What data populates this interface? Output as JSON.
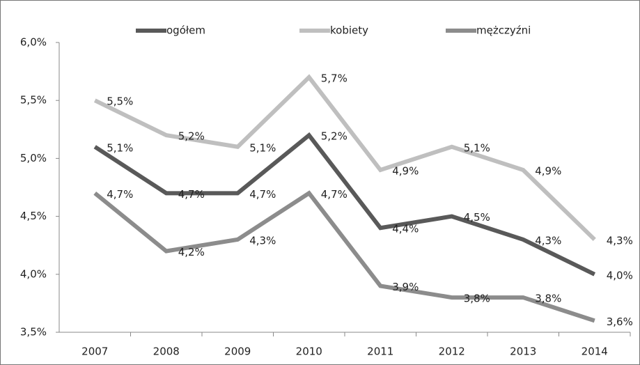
{
  "chart_data": {
    "type": "line",
    "categories": [
      "2007",
      "2008",
      "2009",
      "2010",
      "2011",
      "2012",
      "2013",
      "2014"
    ],
    "series": [
      {
        "name": "ogółem",
        "color": "#595959",
        "values": [
          5.1,
          4.7,
          4.7,
          5.2,
          4.4,
          4.5,
          4.3,
          4.0
        ],
        "value_labels": [
          "5,1%",
          "4,7%",
          "4,7%",
          "5,2%",
          "4,4%",
          "4,5%",
          "4,3%",
          "4,0%"
        ]
      },
      {
        "name": "kobiety",
        "color": "#bfbfbf",
        "values": [
          5.5,
          5.2,
          5.1,
          5.7,
          4.9,
          5.1,
          4.9,
          4.3
        ],
        "value_labels": [
          "5,5%",
          "5,2%",
          "5,1%",
          "5,7%",
          "4,9%",
          "5,1%",
          "4,9%",
          "4,3%"
        ]
      },
      {
        "name": "mężczyźni",
        "color": "#8c8c8c",
        "values": [
          4.7,
          4.2,
          4.3,
          4.7,
          3.9,
          3.8,
          3.8,
          3.6
        ],
        "value_labels": [
          "4,7%",
          "4,2%",
          "4,3%",
          "4,7%",
          "3,9%",
          "3,8%",
          "3,8%",
          "3,6%"
        ]
      }
    ],
    "ylim": [
      3.5,
      6.0
    ],
    "yticks": [
      {
        "value": 3.5,
        "label": "3,5%"
      },
      {
        "value": 4.0,
        "label": "4,0%"
      },
      {
        "value": 4.5,
        "label": "4,5%"
      },
      {
        "value": 5.0,
        "label": "5,0%"
      },
      {
        "value": 5.5,
        "label": "5,5%"
      },
      {
        "value": 6.0,
        "label": "6,0%"
      }
    ],
    "grid": false,
    "legend": "top"
  }
}
